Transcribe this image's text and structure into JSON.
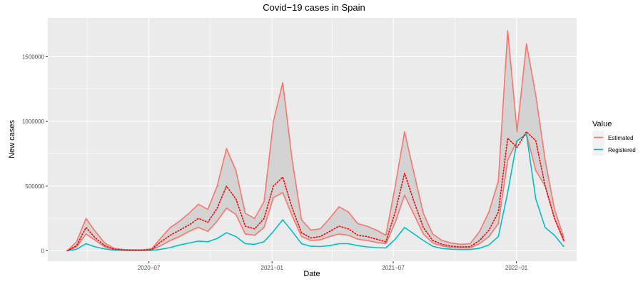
{
  "chart_data": {
    "type": "line",
    "title": "Covid−19 cases in Spain",
    "xlabel": "Date",
    "ylabel": "New cases",
    "x_ticks": [
      {
        "date": "2020-07-01",
        "label": "2020−07"
      },
      {
        "date": "2021-01-01",
        "label": "2021−01"
      },
      {
        "date": "2021-07-01",
        "label": "2021−07"
      },
      {
        "date": "2022-01-01",
        "label": "2022−01"
      }
    ],
    "y_ticks": [
      0,
      500000,
      1000000,
      1500000
    ],
    "xlim": [
      "2020-02-01",
      "2022-04-01"
    ],
    "ylim": [
      -80000,
      1800000
    ],
    "grid": true,
    "legend": {
      "title": "Value",
      "position": "right",
      "entries": [
        {
          "label": "Estimated",
          "color": "#F8766D"
        },
        {
          "label": "Registered",
          "color": "#00BFC4"
        }
      ]
    },
    "colors": {
      "estimated": "#F8766D",
      "registered": "#00BFC4",
      "dotted": "#FF0000",
      "band": "#D3D3D3",
      "panel": "#EBEBEB"
    },
    "x": [
      "2020-03-01",
      "2020-03-15",
      "2020-03-29",
      "2020-04-12",
      "2020-04-26",
      "2020-05-10",
      "2020-05-24",
      "2020-06-07",
      "2020-06-21",
      "2020-07-05",
      "2020-07-19",
      "2020-08-02",
      "2020-08-16",
      "2020-08-30",
      "2020-09-13",
      "2020-09-27",
      "2020-10-11",
      "2020-10-25",
      "2020-11-08",
      "2020-11-22",
      "2020-12-06",
      "2020-12-20",
      "2021-01-03",
      "2021-01-17",
      "2021-01-31",
      "2021-02-14",
      "2021-02-28",
      "2021-03-14",
      "2021-03-28",
      "2021-04-11",
      "2021-04-25",
      "2021-05-09",
      "2021-05-23",
      "2021-06-06",
      "2021-06-20",
      "2021-07-04",
      "2021-07-18",
      "2021-08-01",
      "2021-08-15",
      "2021-08-29",
      "2021-09-12",
      "2021-09-26",
      "2021-10-10",
      "2021-10-24",
      "2021-11-07",
      "2021-11-21",
      "2021-12-05",
      "2021-12-19",
      "2022-01-02",
      "2022-01-16",
      "2022-01-30",
      "2022-02-13",
      "2022-02-27",
      "2022-03-13"
    ],
    "series": [
      {
        "name": "Estimated",
        "role": "upper",
        "values": [
          0,
          70000,
          250000,
          150000,
          60000,
          20000,
          10000,
          8000,
          8000,
          15000,
          100000,
          180000,
          230000,
          290000,
          360000,
          320000,
          500000,
          790000,
          620000,
          290000,
          250000,
          380000,
          1000000,
          1300000,
          700000,
          240000,
          160000,
          170000,
          250000,
          340000,
          300000,
          210000,
          190000,
          160000,
          120000,
          500000,
          920000,
          600000,
          290000,
          130000,
          80000,
          60000,
          50000,
          55000,
          150000,
          300000,
          540000,
          1700000,
          920000,
          1600000,
          1200000,
          700000,
          320000,
          100000
        ]
      },
      {
        "name": "Estimated",
        "role": "middle",
        "values": [
          0,
          40000,
          180000,
          100000,
          40000,
          12000,
          7000,
          5000,
          5000,
          10000,
          70000,
          120000,
          160000,
          200000,
          250000,
          220000,
          330000,
          500000,
          400000,
          190000,
          170000,
          250000,
          500000,
          570000,
          330000,
          140000,
          100000,
          110000,
          150000,
          190000,
          170000,
          120000,
          110000,
          90000,
          70000,
          300000,
          600000,
          380000,
          180000,
          80000,
          50000,
          35000,
          30000,
          32000,
          80000,
          160000,
          300000,
          870000,
          800000,
          920000,
          850000,
          500000,
          250000,
          80000
        ]
      },
      {
        "name": "Estimated",
        "role": "lower",
        "values": [
          0,
          30000,
          130000,
          80000,
          30000,
          10000,
          5000,
          4000,
          4000,
          8000,
          40000,
          80000,
          110000,
          150000,
          180000,
          150000,
          230000,
          330000,
          280000,
          130000,
          120000,
          180000,
          410000,
          450000,
          270000,
          110000,
          80000,
          85000,
          110000,
          130000,
          120000,
          90000,
          80000,
          65000,
          55000,
          220000,
          430000,
          280000,
          130000,
          60000,
          38000,
          25000,
          22000,
          22000,
          55000,
          110000,
          210000,
          700000,
          850000,
          900000,
          620000,
          500000,
          250000,
          70000
        ]
      },
      {
        "name": "Registered",
        "role": "registered",
        "values": [
          0,
          12000,
          55000,
          30000,
          15000,
          5000,
          3000,
          2000,
          2000,
          3000,
          12000,
          25000,
          45000,
          60000,
          75000,
          70000,
          95000,
          140000,
          110000,
          55000,
          50000,
          70000,
          150000,
          240000,
          150000,
          55000,
          35000,
          33000,
          40000,
          55000,
          55000,
          40000,
          30000,
          25000,
          22000,
          90000,
          180000,
          130000,
          80000,
          35000,
          18000,
          12000,
          10000,
          10000,
          20000,
          45000,
          110000,
          450000,
          850000,
          900000,
          400000,
          180000,
          120000,
          30000
        ]
      }
    ]
  }
}
